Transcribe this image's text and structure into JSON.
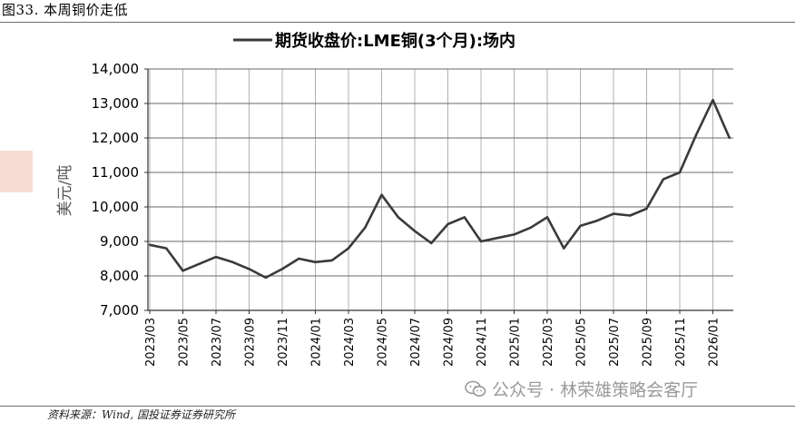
{
  "caption": "图33. 本周铜价走低",
  "source": "资料来源：Wind, 国投证券证券研究所",
  "watermark": {
    "icon": "wechat-icon",
    "text": "公众号 · 林荣雄策略会客厅"
  },
  "colors": {
    "line": "#3a3a3a",
    "grid": "#b0b0b0",
    "side_mark": "#f7dcd6"
  },
  "chart_data": {
    "type": "line",
    "title": "期货收盘价:LME铜(3个月):场内",
    "ylabel": "美元/吨",
    "xlabel": "",
    "ylim": [
      7000,
      14000
    ],
    "yticks": [
      "7,000",
      "8,000",
      "9,000",
      "10,000",
      "11,000",
      "12,000",
      "13,000",
      "14,000"
    ],
    "xticks": [
      "2023/03",
      "2023/05",
      "2023/07",
      "2023/09",
      "2023/11",
      "2024/01",
      "2024/03",
      "2024/05",
      "2024/07",
      "2024/09",
      "2024/11",
      "2025/01",
      "2025/03",
      "2025/05",
      "2025/07",
      "2025/09",
      "2025/11",
      "2026/01"
    ],
    "grid": "vertical",
    "legend": "top",
    "series": [
      {
        "name": "期货收盘价:LME铜(3个月):场内",
        "x": [
          "2023/03",
          "2023/04",
          "2023/05",
          "2023/06",
          "2023/07",
          "2023/08",
          "2023/09",
          "2023/10",
          "2023/11",
          "2023/12",
          "2024/01",
          "2024/02",
          "2024/03",
          "2024/04",
          "2024/05",
          "2024/06",
          "2024/07",
          "2024/08",
          "2024/09",
          "2024/10",
          "2024/11",
          "2024/12",
          "2025/01",
          "2025/02",
          "2025/03",
          "2025/04",
          "2025/05",
          "2025/06",
          "2025/07",
          "2025/08",
          "2025/09",
          "2025/10",
          "2025/11",
          "2025/12",
          "2026/01",
          "2026/02"
        ],
        "values": [
          8900,
          8800,
          8150,
          8350,
          8550,
          8400,
          8200,
          7950,
          8200,
          8500,
          8400,
          8450,
          8800,
          9400,
          10350,
          9700,
          9300,
          8950,
          9500,
          9700,
          9000,
          9100,
          9200,
          9400,
          9700,
          8800,
          9450,
          9600,
          9800,
          9750,
          9950,
          10800,
          11000,
          12100,
          13100,
          12000
        ]
      }
    ]
  }
}
